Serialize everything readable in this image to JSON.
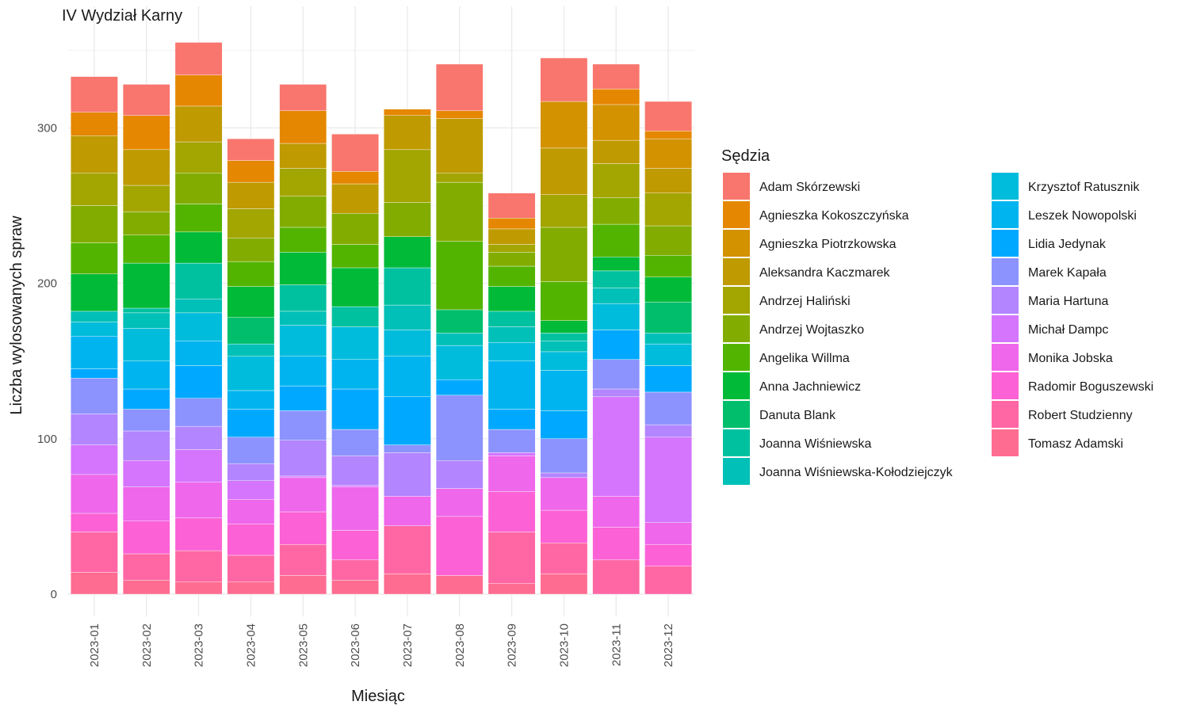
{
  "chart_data": {
    "type": "bar",
    "stacked": true,
    "title": "IV Wydział Karny",
    "xlabel": "Miesiąc",
    "ylabel": "Liczba wylosowanych spraw",
    "ylim": [
      0,
      360
    ],
    "yticks": [
      0,
      100,
      200,
      300
    ],
    "grid": true,
    "legend": {
      "title": "Sędzia",
      "placement": "right"
    },
    "categories": [
      "2023-01",
      "2023-02",
      "2023-03",
      "2023-04",
      "2023-05",
      "2023-06",
      "2023-07",
      "2023-08",
      "2023-09",
      "2023-10",
      "2023-11",
      "2023-12"
    ],
    "series": [
      {
        "name": "Tomasz Adamski",
        "color": "#FF6C91",
        "values": [
          14,
          9,
          8,
          8,
          12,
          9,
          13,
          12,
          7,
          13,
          0,
          0
        ]
      },
      {
        "name": "Robert Studzienny",
        "color": "#FF67A4",
        "values": [
          26,
          17,
          20,
          17,
          20,
          13,
          31,
          0,
          33,
          20,
          22,
          18
        ]
      },
      {
        "name": "Radomir Boguszewski",
        "color": "#FC61D5",
        "values": [
          12,
          21,
          21,
          20,
          21,
          19,
          0,
          38,
          26,
          21,
          21,
          14
        ]
      },
      {
        "name": "Monika Jobska",
        "color": "#EF67EB",
        "values": [
          25,
          22,
          23,
          16,
          22,
          28,
          19,
          18,
          23,
          21,
          20,
          14
        ]
      },
      {
        "name": "Michał Dampc",
        "color": "#D575FE",
        "values": [
          19,
          17,
          21,
          12,
          1,
          1,
          0,
          0,
          2,
          0,
          64,
          55
        ]
      },
      {
        "name": "Maria Hartuna",
        "color": "#B385FF",
        "values": [
          20,
          19,
          15,
          11,
          23,
          19,
          28,
          18,
          0,
          3,
          5,
          8
        ]
      },
      {
        "name": "Marek Kapała",
        "color": "#8C93FF",
        "values": [
          23,
          14,
          18,
          17,
          19,
          17,
          5,
          42,
          15,
          22,
          19,
          21
        ]
      },
      {
        "name": "Lidia Jedynak",
        "color": "#00A9FF",
        "values": [
          6,
          13,
          21,
          18,
          16,
          26,
          31,
          10,
          13,
          18,
          19,
          17
        ]
      },
      {
        "name": "Leszek Nowopolski",
        "color": "#00B4EF",
        "values": [
          21,
          18,
          16,
          12,
          19,
          19,
          26,
          0,
          31,
          26,
          0,
          0
        ]
      },
      {
        "name": "Krzysztof Ratusznik",
        "color": "#00BCDC",
        "values": [
          9,
          21,
          18,
          22,
          20,
          21,
          17,
          22,
          12,
          12,
          17,
          14
        ]
      },
      {
        "name": "Joanna Wiśniewska-Kołodziejczyk",
        "color": "#00C0B8",
        "values": [
          7,
          10,
          9,
          8,
          9,
          0,
          16,
          8,
          10,
          7,
          10,
          7
        ]
      },
      {
        "name": "Joanna Wiśniewska",
        "color": "#00C19F",
        "values": [
          0,
          3,
          23,
          0,
          17,
          13,
          24,
          0,
          10,
          5,
          11,
          0
        ]
      },
      {
        "name": "Danuta Blank",
        "color": "#00BE6C",
        "values": [
          0,
          0,
          0,
          17,
          0,
          0,
          0,
          15,
          0,
          0,
          0,
          20
        ]
      },
      {
        "name": "Anna Jachniewicz",
        "color": "#00BA38",
        "values": [
          24,
          29,
          20,
          20,
          21,
          25,
          20,
          0,
          16,
          8,
          9,
          16
        ]
      },
      {
        "name": "Angelika Willma",
        "color": "#53B400",
        "values": [
          20,
          18,
          18,
          16,
          16,
          15,
          0,
          44,
          13,
          25,
          21,
          14
        ]
      },
      {
        "name": "Andrzej Wojtaszko",
        "color": "#82AD00",
        "values": [
          24,
          15,
          20,
          15,
          20,
          20,
          22,
          38,
          9,
          35,
          17,
          19
        ]
      },
      {
        "name": "Andrzej Haliński",
        "color": "#A3A500",
        "values": [
          21,
          17,
          20,
          19,
          18,
          0,
          34,
          6,
          5,
          21,
          22,
          21
        ]
      },
      {
        "name": "Aleksandra Kaczmarek",
        "color": "#BF9A00",
        "values": [
          24,
          23,
          23,
          17,
          16,
          19,
          22,
          35,
          10,
          30,
          15,
          16
        ]
      },
      {
        "name": "Agnieszka Piotrzkowska",
        "color": "#D39200",
        "values": [
          0,
          0,
          0,
          0,
          0,
          0,
          0,
          0,
          0,
          30,
          23,
          19
        ]
      },
      {
        "name": "Agnieszka Kokoszczyńska",
        "color": "#E58700",
        "values": [
          15,
          22,
          20,
          14,
          21,
          8,
          4,
          5,
          7,
          0,
          10,
          5
        ]
      },
      {
        "name": "Adam Skórzewski",
        "color": "#F8766D",
        "values": [
          23,
          20,
          21,
          14,
          17,
          24,
          0,
          30,
          16,
          28,
          16,
          19
        ]
      }
    ]
  },
  "legend_order": [
    "Adam Skórzewski",
    "Agnieszka Kokoszczyńska",
    "Agnieszka Piotrzkowska",
    "Aleksandra Kaczmarek",
    "Andrzej Haliński",
    "Andrzej Wojtaszko",
    "Angelika Willma",
    "Anna Jachniewicz",
    "Danuta Blank",
    "Joanna Wiśniewska",
    "Joanna Wiśniewska-Kołodziejczyk",
    "Krzysztof Ratusznik",
    "Leszek Nowopolski",
    "Lidia Jedynak",
    "Marek Kapała",
    "Maria Hartuna",
    "Michał Dampc",
    "Monika Jobska",
    "Radomir Boguszewski",
    "Robert Studzienny",
    "Tomasz Adamski"
  ],
  "colors": {
    "background": "#FFFFFF",
    "grid": "#EBEBEB",
    "bar_separator": "#FFFFFF"
  }
}
